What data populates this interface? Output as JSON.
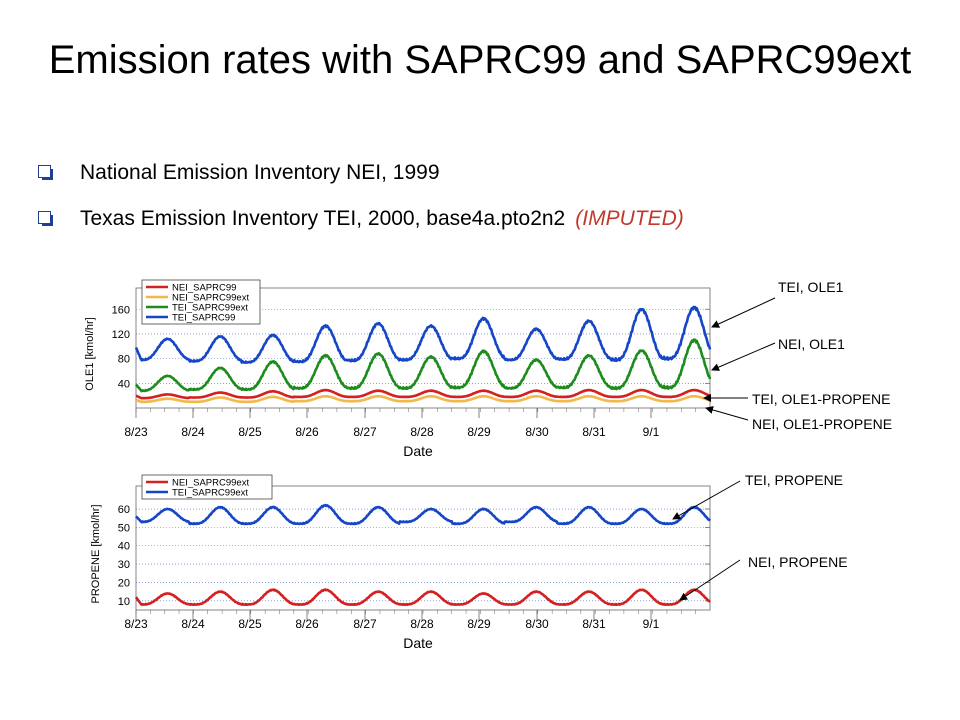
{
  "slide": {
    "title": "Emission rates with SAPRC99 and SAPRC99ext",
    "bullets": [
      {
        "text": "National Emission Inventory NEI, 1999",
        "suffix": ""
      },
      {
        "text": "Texas Emission Inventory TEI, 2000, base4a.pto2n2",
        "suffix": "(IMPUTED)"
      }
    ]
  },
  "colors": {
    "red": "#d42020",
    "orange": "#f2b84b",
    "green": "#1d8c1d",
    "blue": "#1646c8",
    "bullet": "#1f3f8f",
    "imputed": "#c0392b"
  },
  "chart_data": [
    {
      "type": "line",
      "ylabel": "OLE1  [kmol/hr]",
      "xlabel": "Date",
      "x_ticks": [
        "8/23",
        "8/24",
        "8/25",
        "8/26",
        "8/27",
        "8/28",
        "8/29",
        "8/30",
        "8/31",
        "9/1"
      ],
      "yticks": [
        40,
        80,
        120,
        160
      ],
      "ylim": [
        0,
        175
      ],
      "grid": true,
      "legend_position": "top-left",
      "series": [
        {
          "name": "NEI_SAPRC99",
          "color": "#d42020",
          "peaks": [
            22,
            25,
            27,
            29,
            28,
            28,
            28,
            28,
            29,
            29,
            29,
            29,
            28
          ],
          "troughs": [
            16,
            17,
            17,
            18,
            18,
            18,
            18,
            18,
            18,
            18,
            18,
            18,
            19
          ],
          "start": 20,
          "end": 27
        },
        {
          "name": "NEI_SAPRC99ext",
          "color": "#f2b84b",
          "peaks": [
            15,
            17,
            18,
            19,
            19,
            19,
            19,
            19,
            19,
            19,
            19,
            19,
            19
          ],
          "troughs": [
            10,
            10,
            10,
            11,
            11,
            11,
            11,
            11,
            11,
            11,
            11,
            11,
            12
          ],
          "start": 13,
          "end": 17
        },
        {
          "name": "TEI_SAPRC99ext",
          "color": "#1d8c1d",
          "peaks": [
            52,
            65,
            75,
            85,
            88,
            83,
            92,
            78,
            85,
            93,
            110,
            115,
            98
          ],
          "troughs": [
            28,
            30,
            30,
            32,
            32,
            32,
            33,
            32,
            33,
            32,
            33,
            33,
            35
          ],
          "start": 38,
          "end": 62
        },
        {
          "name": "TEI_SAPRC99",
          "color": "#1646c8",
          "peaks": [
            112,
            116,
            118,
            133,
            137,
            133,
            145,
            128,
            141,
            160,
            163,
            172,
            157
          ],
          "troughs": [
            78,
            76,
            74,
            75,
            77,
            78,
            80,
            78,
            79,
            78,
            80,
            78,
            80
          ],
          "start": 98,
          "end": 118
        }
      ],
      "annotations": [
        "TEI, OLE1",
        "NEI, OLE1",
        "TEI, OLE1-PROPENE",
        "NEI, OLE1-PROPENE"
      ]
    },
    {
      "type": "line",
      "ylabel": "PROPENE  [kmol/hr]",
      "xlabel": "Date",
      "x_ticks": [
        "8/23",
        "8/24",
        "8/25",
        "8/26",
        "8/27",
        "8/28",
        "8/29",
        "8/30",
        "8/31",
        "9/1"
      ],
      "yticks": [
        10,
        20,
        30,
        40,
        50,
        60
      ],
      "ylim": [
        5,
        66
      ],
      "grid": true,
      "legend_position": "top-left",
      "series": [
        {
          "name": "NEI_SAPRC99ext",
          "color": "#d42020",
          "peaks": [
            14,
            15,
            16,
            16,
            15,
            15,
            14,
            15,
            15,
            16,
            16,
            16,
            15
          ],
          "troughs": [
            8,
            8,
            8,
            8,
            8,
            8,
            8,
            8,
            8,
            8,
            8,
            8,
            8
          ],
          "start": 12,
          "end": 14
        },
        {
          "name": "TEI_SAPRC99ext",
          "color": "#1646c8",
          "peaks": [
            60,
            61,
            61,
            62,
            61,
            60,
            60,
            61,
            61,
            60,
            61,
            61,
            61
          ],
          "troughs": [
            53,
            52,
            52,
            52,
            52,
            53,
            52,
            53,
            52,
            52,
            52,
            52,
            53
          ],
          "start": 56,
          "end": 59
        },
        {
          "name": "",
          "color": "#1646c8",
          "peaks": [],
          "troughs": [],
          "start": 0,
          "end": 0
        }
      ],
      "annotations": [
        "TEI, PROPENE",
        "NEI, PROPENE"
      ]
    }
  ]
}
